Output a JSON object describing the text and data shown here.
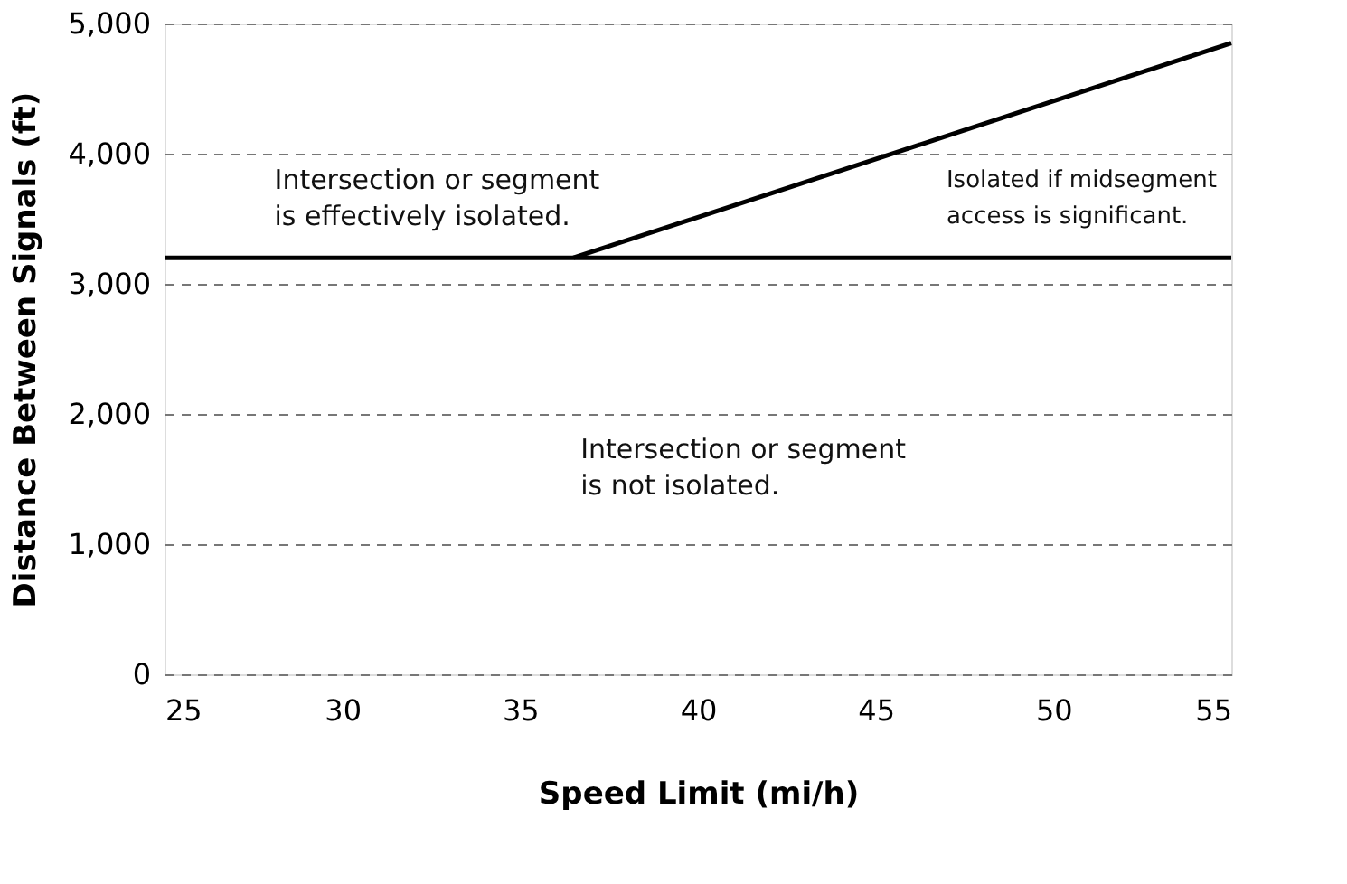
{
  "chart_data": {
    "type": "line",
    "xlabel": "Speed Limit (mi/h)",
    "ylabel": "Distance Between Signals (ft)",
    "series": [
      {
        "color": "#000000",
        "x": [
          25,
          55
        ],
        "values": [
          3200,
          3200
        ]
      },
      {
        "color": "#000000",
        "x": [
          36.5,
          55
        ],
        "values": [
          3200,
          4850
        ]
      }
    ],
    "xlim": [
      25,
      55
    ],
    "xticks": [
      25,
      30,
      35,
      40,
      45,
      50,
      55
    ],
    "ylim": [
      0,
      5000
    ],
    "yticks": [
      {
        "value": 0,
        "label": "0"
      },
      {
        "value": 1000,
        "label": "1,000"
      },
      {
        "value": 2000,
        "label": "2,000"
      },
      {
        "value": 3000,
        "label": "3,000"
      },
      {
        "value": 4000,
        "label": "4,000"
      },
      {
        "value": 5000,
        "label": "5,000"
      }
    ],
    "grid": "y",
    "line_style": "solid",
    "marker": "none",
    "annotations": [
      "Intersection or segment\nis effectively isolated.",
      "Isolated if midsegment\naccess is significant.",
      "Intersection or segment\nis not isolated."
    ]
  }
}
